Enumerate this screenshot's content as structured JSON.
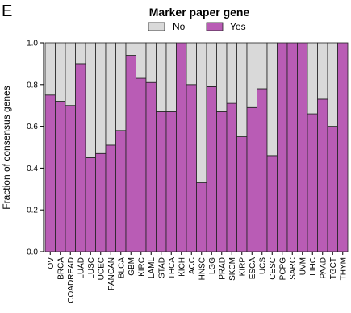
{
  "panel_letter": "E",
  "colors": {
    "no": "#d9d9d9",
    "yes": "#b95cb5",
    "outline": "#222222"
  },
  "chart_data": {
    "type": "bar",
    "stacked": true,
    "title": "Marker paper gene",
    "xlabel": "",
    "ylabel": "Fraction of consensus genes",
    "ylim": [
      0,
      1.0
    ],
    "yticks": [
      0.0,
      0.2,
      0.4,
      0.6,
      0.8,
      1.0
    ],
    "ytick_labels": [
      "0.0",
      "0.2",
      "0.4",
      "0.6",
      "0.8",
      "1.0"
    ],
    "grid": false,
    "legend_position": "top-center",
    "categories": [
      "OV",
      "BRCA",
      "COADREAD",
      "LUAD",
      "LUSC",
      "UCEC",
      "PANCAN",
      "BLCA",
      "GBM",
      "KIRC",
      "LAML",
      "STAD",
      "THCA",
      "KICH",
      "ACC",
      "HNSC",
      "LGG",
      "PRAD",
      "SKCM",
      "KIRP",
      "ESCA",
      "UCS",
      "CESC",
      "PCPG",
      "SARC",
      "UVM",
      "LIHC",
      "PAAD",
      "TGCT",
      "THYM"
    ],
    "series": [
      {
        "name": "Yes",
        "color": "#b95cb5",
        "values": [
          0.75,
          0.72,
          0.7,
          0.9,
          0.45,
          0.47,
          0.51,
          0.58,
          0.94,
          0.83,
          0.81,
          0.67,
          0.67,
          1.0,
          0.8,
          0.33,
          0.79,
          0.67,
          0.71,
          0.55,
          0.69,
          0.78,
          0.46,
          1.0,
          1.0,
          1.0,
          0.66,
          0.73,
          0.6,
          1.0
        ]
      },
      {
        "name": "No",
        "color": "#d9d9d9",
        "values": [
          0.25,
          0.28,
          0.3,
          0.1,
          0.55,
          0.53,
          0.49,
          0.42,
          0.06,
          0.17,
          0.19,
          0.33,
          0.33,
          0.0,
          0.2,
          0.67,
          0.21,
          0.33,
          0.29,
          0.45,
          0.31,
          0.22,
          0.54,
          0.0,
          0.0,
          0.0,
          0.34,
          0.27,
          0.4,
          0.0
        ]
      }
    ],
    "legend": [
      {
        "label": "No",
        "color": "#d9d9d9"
      },
      {
        "label": "Yes",
        "color": "#b95cb5"
      }
    ]
  }
}
